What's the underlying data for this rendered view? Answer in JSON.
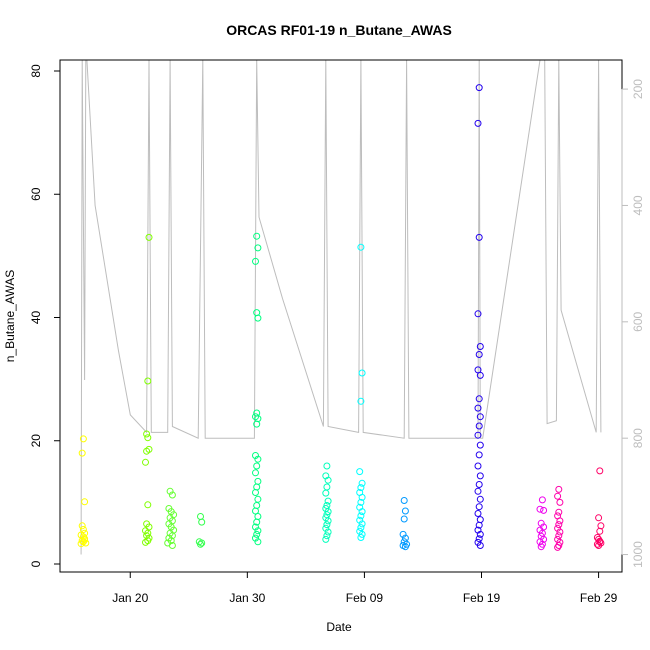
{
  "chart_data": {
    "type": "scatter",
    "title": "ORCAS RF01-19 n_Butane_AWAS",
    "xlabel": "Date",
    "ylabel": "n_Butane_AWAS",
    "x_is_date": true,
    "xlim": [
      "2016-01-14",
      "2016-03-02"
    ],
    "ylim": [
      0,
      80
    ],
    "y_ticks": [
      0,
      20,
      40,
      60,
      80
    ],
    "x_ticks": [
      {
        "date": "2016-01-20",
        "label": "Jan 20"
      },
      {
        "date": "2016-01-30",
        "label": "Jan 30"
      },
      {
        "date": "2016-02-09",
        "label": "Feb 09"
      },
      {
        "date": "2016-02-19",
        "label": "Feb 19"
      },
      {
        "date": "2016-02-29",
        "label": "Feb 29"
      }
    ],
    "secondary_axis": {
      "side": "right",
      "reversed": true,
      "range": [
        1030,
        150
      ],
      "ticks": [
        200,
        400,
        600,
        800,
        1000
      ],
      "color": "#bdbdbd"
    },
    "secondary_track": [
      [
        "2016-01-15.80",
        1000
      ],
      [
        "2016-01-15.90",
        150
      ],
      [
        "2016-01-16.10",
        700
      ],
      [
        "2016-01-16.20",
        150
      ],
      [
        "2016-01-16.30",
        150
      ],
      [
        "2016-01-17.00",
        400
      ],
      [
        "2016-01-19.00",
        650
      ],
      [
        "2016-01-20.00",
        760
      ],
      [
        "2016-01-21.40",
        790
      ],
      [
        "2016-01-21.60",
        150
      ],
      [
        "2016-01-21.80",
        790
      ],
      [
        "2016-01-23.20",
        790
      ],
      [
        "2016-01-23.40",
        150
      ],
      [
        "2016-01-23.60",
        780
      ],
      [
        "2016-01-25.80",
        800
      ],
      [
        "2016-01-26.20",
        150
      ],
      [
        "2016-01-26.40",
        800
      ],
      [
        "2016-01-30.60",
        800
      ],
      [
        "2016-01-30.80",
        150
      ],
      [
        "2016-01-31.00",
        420
      ],
      [
        "2016-02-02.00",
        560
      ],
      [
        "2016-02-05.50",
        780
      ],
      [
        "2016-02-05.70",
        150
      ],
      [
        "2016-02-05.90",
        780
      ],
      [
        "2016-02-08.50",
        790
      ],
      [
        "2016-02-08.70",
        150
      ],
      [
        "2016-02-08.90",
        790
      ],
      [
        "2016-02-12.40",
        800
      ],
      [
        "2016-02-12.60",
        150
      ],
      [
        "2016-02-12.80",
        800
      ],
      [
        "2016-02-18.70",
        800
      ],
      [
        "2016-02-18.80",
        150
      ],
      [
        "2016-02-18.90",
        800
      ],
      [
        "2016-02-19.10",
        800
      ],
      [
        "2016-02-24.00",
        150
      ],
      [
        "2016-02-24.40",
        150
      ],
      [
        "2016-02-24.60",
        775
      ],
      [
        "2016-02-25.40",
        770
      ],
      [
        "2016-02-25.60",
        150
      ],
      [
        "2016-02-25.80",
        580
      ],
      [
        "2016-02-28.80",
        790
      ],
      [
        "2016-02-29.00",
        150
      ],
      [
        "2016-02-29.20",
        790
      ]
    ],
    "series": [
      {
        "color": "#ffff00",
        "points": [
          [
            "2016-01-16.00",
            20.3
          ],
          [
            "2016-01-15.90",
            18.0
          ],
          [
            "2016-01-16.10",
            10.1
          ],
          [
            "2016-01-15.90",
            6.2
          ],
          [
            "2016-01-16.00",
            5.6
          ],
          [
            "2016-01-16.10",
            5.0
          ],
          [
            "2016-01-15.80",
            4.7
          ],
          [
            "2016-01-16.00",
            4.4
          ],
          [
            "2016-01-16.10",
            4.1
          ],
          [
            "2016-01-15.90",
            3.8
          ],
          [
            "2016-01-16.00",
            3.6
          ],
          [
            "2016-01-16.20",
            3.4
          ],
          [
            "2016-01-15.80",
            3.3
          ],
          [
            "2016-01-16.10",
            3.9
          ]
        ]
      },
      {
        "color": "#80ff00",
        "points": [
          [
            "2016-01-21.60",
            53.0
          ],
          [
            "2016-01-21.50",
            29.7
          ],
          [
            "2016-01-21.40",
            21.1
          ],
          [
            "2016-01-21.50",
            20.5
          ],
          [
            "2016-01-21.60",
            18.6
          ],
          [
            "2016-01-21.40",
            18.3
          ],
          [
            "2016-01-21.30",
            16.5
          ],
          [
            "2016-01-21.50",
            9.6
          ],
          [
            "2016-01-21.40",
            6.5
          ],
          [
            "2016-01-21.60",
            6.0
          ],
          [
            "2016-01-21.30",
            5.4
          ],
          [
            "2016-01-21.50",
            5.0
          ],
          [
            "2016-01-21.40",
            4.6
          ],
          [
            "2016-01-21.60",
            4.2
          ],
          [
            "2016-01-21.50",
            3.8
          ],
          [
            "2016-01-21.30",
            3.5
          ]
        ]
      },
      {
        "color": "#66ff33",
        "points": [
          [
            "2016-01-23.40",
            11.8
          ],
          [
            "2016-01-23.60",
            11.2
          ],
          [
            "2016-01-23.30",
            9.0
          ],
          [
            "2016-01-23.50",
            8.5
          ],
          [
            "2016-01-23.70",
            8.0
          ],
          [
            "2016-01-23.40",
            7.5
          ],
          [
            "2016-01-23.60",
            7.0
          ],
          [
            "2016-01-23.30",
            6.5
          ],
          [
            "2016-01-23.50",
            6.0
          ],
          [
            "2016-01-23.70",
            5.5
          ],
          [
            "2016-01-23.40",
            5.0
          ],
          [
            "2016-01-23.60",
            4.6
          ],
          [
            "2016-01-23.30",
            4.2
          ],
          [
            "2016-01-23.50",
            3.8
          ],
          [
            "2016-01-23.20",
            3.4
          ],
          [
            "2016-01-23.60",
            3.0
          ]
        ]
      },
      {
        "color": "#33ff4d",
        "points": [
          [
            "2016-01-26.00",
            7.7
          ],
          [
            "2016-01-26.10",
            6.8
          ],
          [
            "2016-01-25.90",
            3.6
          ],
          [
            "2016-01-26.00",
            3.2
          ],
          [
            "2016-01-26.10",
            3.4
          ]
        ]
      },
      {
        "color": "#00ff80",
        "points": [
          [
            "2016-01-30.80",
            53.2
          ],
          [
            "2016-01-30.90",
            51.3
          ],
          [
            "2016-01-30.70",
            49.1
          ],
          [
            "2016-01-30.80",
            40.8
          ],
          [
            "2016-01-30.90",
            39.9
          ],
          [
            "2016-01-30.80",
            24.5
          ],
          [
            "2016-01-30.90",
            23.6
          ],
          [
            "2016-01-30.70",
            23.9
          ],
          [
            "2016-01-30.80",
            22.7
          ],
          [
            "2016-01-30.70",
            17.6
          ],
          [
            "2016-01-30.90",
            17.0
          ],
          [
            "2016-01-30.80",
            15.9
          ],
          [
            "2016-01-30.70",
            14.8
          ],
          [
            "2016-01-30.90",
            13.4
          ],
          [
            "2016-01-30.80",
            12.5
          ],
          [
            "2016-01-30.70",
            11.6
          ],
          [
            "2016-01-30.90",
            10.5
          ],
          [
            "2016-01-30.80",
            9.5
          ],
          [
            "2016-01-30.70",
            8.6
          ],
          [
            "2016-01-30.90",
            7.7
          ],
          [
            "2016-01-30.80",
            6.8
          ],
          [
            "2016-01-30.70",
            6.0
          ],
          [
            "2016-01-30.90",
            5.4
          ],
          [
            "2016-01-30.80",
            4.8
          ],
          [
            "2016-01-30.70",
            4.2
          ],
          [
            "2016-01-30.90",
            3.6
          ]
        ]
      },
      {
        "color": "#00ffbb",
        "points": [
          [
            "2016-02-05.80",
            15.9
          ],
          [
            "2016-02-05.70",
            14.3
          ],
          [
            "2016-02-05.90",
            13.6
          ],
          [
            "2016-02-05.80",
            12.5
          ],
          [
            "2016-02-05.70",
            11.5
          ],
          [
            "2016-02-05.90",
            10.2
          ],
          [
            "2016-02-05.80",
            9.5
          ],
          [
            "2016-02-05.70",
            9.0
          ],
          [
            "2016-02-05.90",
            8.5
          ],
          [
            "2016-02-05.80",
            8.0
          ],
          [
            "2016-02-05.70",
            7.5
          ],
          [
            "2016-02-05.90",
            7.0
          ],
          [
            "2016-02-05.80",
            6.4
          ],
          [
            "2016-02-05.70",
            5.8
          ],
          [
            "2016-02-05.90",
            5.2
          ],
          [
            "2016-02-05.80",
            4.6
          ],
          [
            "2016-02-05.70",
            4.0
          ]
        ]
      },
      {
        "color": "#00ffff",
        "points": [
          [
            "2016-02-08.70",
            51.4
          ],
          [
            "2016-02-08.80",
            31.0
          ],
          [
            "2016-02-08.70",
            26.4
          ],
          [
            "2016-02-08.60",
            15.0
          ],
          [
            "2016-02-08.80",
            13.1
          ],
          [
            "2016-02-08.70",
            12.4
          ],
          [
            "2016-02-08.60",
            11.6
          ],
          [
            "2016-02-08.80",
            10.8
          ],
          [
            "2016-02-08.70",
            10.0
          ],
          [
            "2016-02-08.60",
            9.2
          ],
          [
            "2016-02-08.80",
            8.5
          ],
          [
            "2016-02-08.70",
            7.8
          ],
          [
            "2016-02-08.60",
            7.1
          ],
          [
            "2016-02-08.80",
            6.5
          ],
          [
            "2016-02-08.70",
            5.9
          ],
          [
            "2016-02-08.60",
            5.3
          ],
          [
            "2016-02-08.80",
            4.8
          ],
          [
            "2016-02-08.70",
            4.3
          ]
        ]
      },
      {
        "color": "#0099ff",
        "points": [
          [
            "2016-02-12.40",
            10.3
          ],
          [
            "2016-02-12.50",
            8.6
          ],
          [
            "2016-02-12.40",
            7.3
          ],
          [
            "2016-02-12.30",
            4.8
          ],
          [
            "2016-02-12.50",
            4.2
          ],
          [
            "2016-02-12.40",
            3.6
          ],
          [
            "2016-02-12.60",
            3.2
          ],
          [
            "2016-02-12.50",
            2.8
          ],
          [
            "2016-02-12.30",
            3.0
          ]
        ]
      },
      {
        "color": "#2200ee",
        "points": [
          [
            "2016-02-18.80",
            77.3
          ],
          [
            "2016-02-18.70",
            71.5
          ],
          [
            "2016-02-18.80",
            53.0
          ],
          [
            "2016-02-18.70",
            40.6
          ],
          [
            "2016-02-18.90",
            35.3
          ],
          [
            "2016-02-18.80",
            34.0
          ],
          [
            "2016-02-18.70",
            31.5
          ],
          [
            "2016-02-18.90",
            30.6
          ],
          [
            "2016-02-18.80",
            26.8
          ],
          [
            "2016-02-18.70",
            25.3
          ],
          [
            "2016-02-18.90",
            23.9
          ],
          [
            "2016-02-18.80",
            22.4
          ],
          [
            "2016-02-18.70",
            20.9
          ],
          [
            "2016-02-18.90",
            19.3
          ],
          [
            "2016-02-18.80",
            17.7
          ],
          [
            "2016-02-18.70",
            15.9
          ],
          [
            "2016-02-18.90",
            14.3
          ],
          [
            "2016-02-18.80",
            12.9
          ],
          [
            "2016-02-18.70",
            11.8
          ],
          [
            "2016-02-18.90",
            10.5
          ],
          [
            "2016-02-18.80",
            9.3
          ],
          [
            "2016-02-18.70",
            8.2
          ],
          [
            "2016-02-18.90",
            7.2
          ],
          [
            "2016-02-18.80",
            6.3
          ],
          [
            "2016-02-18.70",
            5.5
          ],
          [
            "2016-02-18.90",
            4.8
          ],
          [
            "2016-02-18.80",
            4.1
          ],
          [
            "2016-02-18.70",
            3.5
          ],
          [
            "2016-02-18.90",
            3.0
          ]
        ]
      },
      {
        "color": "#ee00ee",
        "points": [
          [
            "2016-02-24.20",
            10.4
          ],
          [
            "2016-02-24.00",
            8.9
          ],
          [
            "2016-02-24.30",
            8.7
          ],
          [
            "2016-02-24.10",
            6.6
          ],
          [
            "2016-02-24.30",
            6.0
          ],
          [
            "2016-02-24.00",
            5.5
          ],
          [
            "2016-02-24.20",
            5.0
          ],
          [
            "2016-02-24.10",
            4.5
          ],
          [
            "2016-02-24.30",
            4.0
          ],
          [
            "2016-02-24.00",
            3.6
          ],
          [
            "2016-02-24.20",
            3.2
          ],
          [
            "2016-02-24.10",
            2.8
          ]
        ]
      },
      {
        "color": "#ff00aa",
        "points": [
          [
            "2016-02-25.60",
            12.1
          ],
          [
            "2016-02-25.50",
            11.0
          ],
          [
            "2016-02-25.70",
            10.0
          ],
          [
            "2016-02-25.60",
            8.4
          ],
          [
            "2016-02-25.50",
            7.8
          ],
          [
            "2016-02-25.70",
            7.0
          ],
          [
            "2016-02-25.60",
            6.4
          ],
          [
            "2016-02-25.50",
            5.8
          ],
          [
            "2016-02-25.70",
            5.2
          ],
          [
            "2016-02-25.60",
            4.6
          ],
          [
            "2016-02-25.50",
            4.0
          ],
          [
            "2016-02-25.70",
            3.5
          ],
          [
            "2016-02-25.60",
            3.0
          ],
          [
            "2016-02-25.50",
            2.7
          ]
        ]
      },
      {
        "color": "#ff0066",
        "points": [
          [
            "2016-02-29.10",
            15.1
          ],
          [
            "2016-02-29.00",
            7.5
          ],
          [
            "2016-02-29.20",
            6.2
          ],
          [
            "2016-02-29.10",
            5.3
          ],
          [
            "2016-02-28.90",
            4.3
          ],
          [
            "2016-02-29.00",
            4.0
          ],
          [
            "2016-02-29.10",
            3.7
          ],
          [
            "2016-02-29.20",
            3.4
          ],
          [
            "2016-02-28.90",
            3.2
          ],
          [
            "2016-02-29.00",
            3.0
          ],
          [
            "2016-02-29.10",
            3.6
          ]
        ]
      }
    ]
  }
}
